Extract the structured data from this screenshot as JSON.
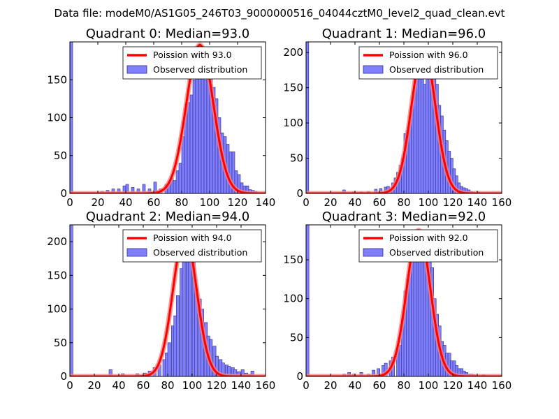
{
  "suptitle": "Data file: modeM0/AS1G05_246T03_9000000516_04044cztM0_level2_quad_clean.evt",
  "colors": {
    "bar_fill": "#8080ff",
    "bar_edge": "#2a2a8a",
    "poisson_line": "#ff0000",
    "poisson_glow": "#ff8080"
  },
  "chart_data": [
    {
      "type": "bar",
      "title": "Quadrant 0: Median=93.0",
      "median": 93.0,
      "xlim": [
        0,
        140
      ],
      "ylim": [
        0,
        200
      ],
      "xticks": [
        0,
        20,
        40,
        60,
        80,
        100,
        120,
        140
      ],
      "yticks": [
        0,
        50,
        100,
        150
      ],
      "legend": {
        "location": "top-right",
        "entries": [
          "Poission with 93.0",
          "Observed distribution"
        ]
      },
      "poisson_peak": 196,
      "bin_width": 2,
      "bins": [
        [
          0,
          200
        ],
        [
          22,
          3
        ],
        [
          26,
          4
        ],
        [
          30,
          6
        ],
        [
          34,
          6
        ],
        [
          38,
          10
        ],
        [
          40,
          12
        ],
        [
          44,
          8
        ],
        [
          48,
          6
        ],
        [
          52,
          12
        ],
        [
          56,
          6
        ],
        [
          60,
          15
        ],
        [
          64,
          6
        ],
        [
          68,
          12
        ],
        [
          70,
          14
        ],
        [
          72,
          20
        ],
        [
          74,
          17
        ],
        [
          76,
          30
        ],
        [
          78,
          40
        ],
        [
          80,
          75
        ],
        [
          82,
          110
        ],
        [
          84,
          120
        ],
        [
          86,
          130
        ],
        [
          88,
          150
        ],
        [
          90,
          160
        ],
        [
          92,
          180
        ],
        [
          94,
          185
        ],
        [
          96,
          150
        ],
        [
          98,
          175
        ],
        [
          100,
          180
        ],
        [
          102,
          140
        ],
        [
          104,
          125
        ],
        [
          106,
          100
        ],
        [
          108,
          80
        ],
        [
          110,
          75
        ],
        [
          112,
          65
        ],
        [
          114,
          55
        ],
        [
          116,
          55
        ],
        [
          118,
          30
        ],
        [
          120,
          25
        ],
        [
          122,
          14
        ],
        [
          124,
          10
        ],
        [
          126,
          10
        ],
        [
          128,
          5
        ],
        [
          130,
          4
        ],
        [
          132,
          3
        ]
      ]
    },
    {
      "type": "bar",
      "title": "Quadrant 1: Median=96.0",
      "median": 96.0,
      "xlim": [
        0,
        160
      ],
      "ylim": [
        0,
        215
      ],
      "xticks": [
        0,
        20,
        40,
        60,
        80,
        100,
        120,
        140,
        160
      ],
      "yticks": [
        0,
        50,
        100,
        150,
        200
      ],
      "legend": {
        "location": "top-right",
        "entries": [
          "Poission with 96.0",
          "Observed distribution"
        ]
      },
      "poisson_peak": 205,
      "bin_width": 2.2,
      "bins": [
        [
          0,
          215
        ],
        [
          30,
          5
        ],
        [
          38,
          2
        ],
        [
          44,
          2
        ],
        [
          50,
          3
        ],
        [
          56,
          6
        ],
        [
          60,
          7
        ],
        [
          64,
          9
        ],
        [
          66,
          10
        ],
        [
          68,
          7
        ],
        [
          70,
          15
        ],
        [
          72,
          22
        ],
        [
          74,
          30
        ],
        [
          76,
          40
        ],
        [
          78,
          50
        ],
        [
          80,
          85
        ],
        [
          82,
          90
        ],
        [
          84,
          110
        ],
        [
          86,
          125
        ],
        [
          88,
          150
        ],
        [
          90,
          180
        ],
        [
          92,
          200
        ],
        [
          94,
          205
        ],
        [
          96,
          155
        ],
        [
          98,
          205
        ],
        [
          100,
          195
        ],
        [
          102,
          160
        ],
        [
          104,
          175
        ],
        [
          106,
          155
        ],
        [
          108,
          125
        ],
        [
          110,
          110
        ],
        [
          112,
          90
        ],
        [
          114,
          75
        ],
        [
          116,
          60
        ],
        [
          118,
          50
        ],
        [
          120,
          35
        ],
        [
          122,
          25
        ],
        [
          124,
          15
        ],
        [
          126,
          10
        ],
        [
          128,
          8
        ],
        [
          130,
          7
        ],
        [
          132,
          5
        ],
        [
          134,
          3
        ],
        [
          136,
          2
        ],
        [
          140,
          2
        ]
      ]
    },
    {
      "type": "bar",
      "title": "Quadrant 2: Median=94.0",
      "median": 94.0,
      "xlim": [
        0,
        160
      ],
      "ylim": [
        0,
        225
      ],
      "xticks": [
        0,
        20,
        40,
        60,
        80,
        100,
        120,
        140,
        160
      ],
      "yticks": [
        0,
        50,
        100,
        150,
        200
      ],
      "legend": {
        "location": "top-right",
        "entries": [
          "Poission with 94.0",
          "Observed distribution"
        ]
      },
      "poisson_peak": 212,
      "bin_width": 2.5,
      "bins": [
        [
          0,
          225
        ],
        [
          32,
          10
        ],
        [
          42,
          4
        ],
        [
          54,
          4
        ],
        [
          60,
          5
        ],
        [
          64,
          8
        ],
        [
          68,
          13
        ],
        [
          72,
          17
        ],
        [
          76,
          25
        ],
        [
          78,
          35
        ],
        [
          80,
          50
        ],
        [
          83,
          75
        ],
        [
          85,
          90
        ],
        [
          87,
          120
        ],
        [
          90,
          160
        ],
        [
          92,
          180
        ],
        [
          95,
          205
        ],
        [
          97,
          215
        ],
        [
          100,
          175
        ],
        [
          102,
          130
        ],
        [
          105,
          115
        ],
        [
          107,
          100
        ],
        [
          110,
          80
        ],
        [
          112,
          60
        ],
        [
          114,
          55
        ],
        [
          117,
          45
        ],
        [
          119,
          30
        ],
        [
          122,
          25
        ],
        [
          124,
          20
        ],
        [
          127,
          17
        ],
        [
          129,
          15
        ],
        [
          132,
          13
        ],
        [
          134,
          10
        ],
        [
          137,
          7
        ],
        [
          140,
          10
        ],
        [
          143,
          5
        ],
        [
          146,
          3
        ],
        [
          148,
          8
        ]
      ]
    },
    {
      "type": "bar",
      "title": "Quadrant 3: Median=92.0",
      "median": 92.0,
      "xlim": [
        0,
        160
      ],
      "ylim": [
        0,
        195
      ],
      "xticks": [
        0,
        20,
        40,
        60,
        80,
        100,
        120,
        140,
        160
      ],
      "yticks": [
        0,
        50,
        100,
        150
      ],
      "legend": {
        "location": "top-right",
        "entries": [
          "Poission with 92.0",
          "Observed distribution"
        ]
      },
      "poisson_peak": 188,
      "bin_width": 2.4,
      "bins": [
        [
          0,
          195
        ],
        [
          30,
          3
        ],
        [
          34,
          5
        ],
        [
          38,
          3
        ],
        [
          44,
          5
        ],
        [
          50,
          3
        ],
        [
          54,
          8
        ],
        [
          58,
          10
        ],
        [
          62,
          14
        ],
        [
          64,
          17
        ],
        [
          68,
          20
        ],
        [
          70,
          25
        ],
        [
          74,
          35
        ],
        [
          76,
          40
        ],
        [
          78,
          75
        ],
        [
          80,
          110
        ],
        [
          82,
          125
        ],
        [
          84,
          140
        ],
        [
          86,
          160
        ],
        [
          88,
          180
        ],
        [
          90,
          185
        ],
        [
          92,
          170
        ],
        [
          94,
          150
        ],
        [
          96,
          160
        ],
        [
          98,
          170
        ],
        [
          100,
          175
        ],
        [
          102,
          140
        ],
        [
          104,
          100
        ],
        [
          106,
          80
        ],
        [
          108,
          65
        ],
        [
          110,
          45
        ],
        [
          112,
          40
        ],
        [
          114,
          30
        ],
        [
          116,
          30
        ],
        [
          118,
          20
        ],
        [
          120,
          20
        ],
        [
          122,
          14
        ],
        [
          124,
          10
        ],
        [
          126,
          10
        ],
        [
          128,
          7
        ],
        [
          130,
          5
        ],
        [
          132,
          3
        ],
        [
          134,
          3
        ],
        [
          136,
          2
        ],
        [
          140,
          1
        ],
        [
          144,
          2
        ]
      ]
    }
  ]
}
